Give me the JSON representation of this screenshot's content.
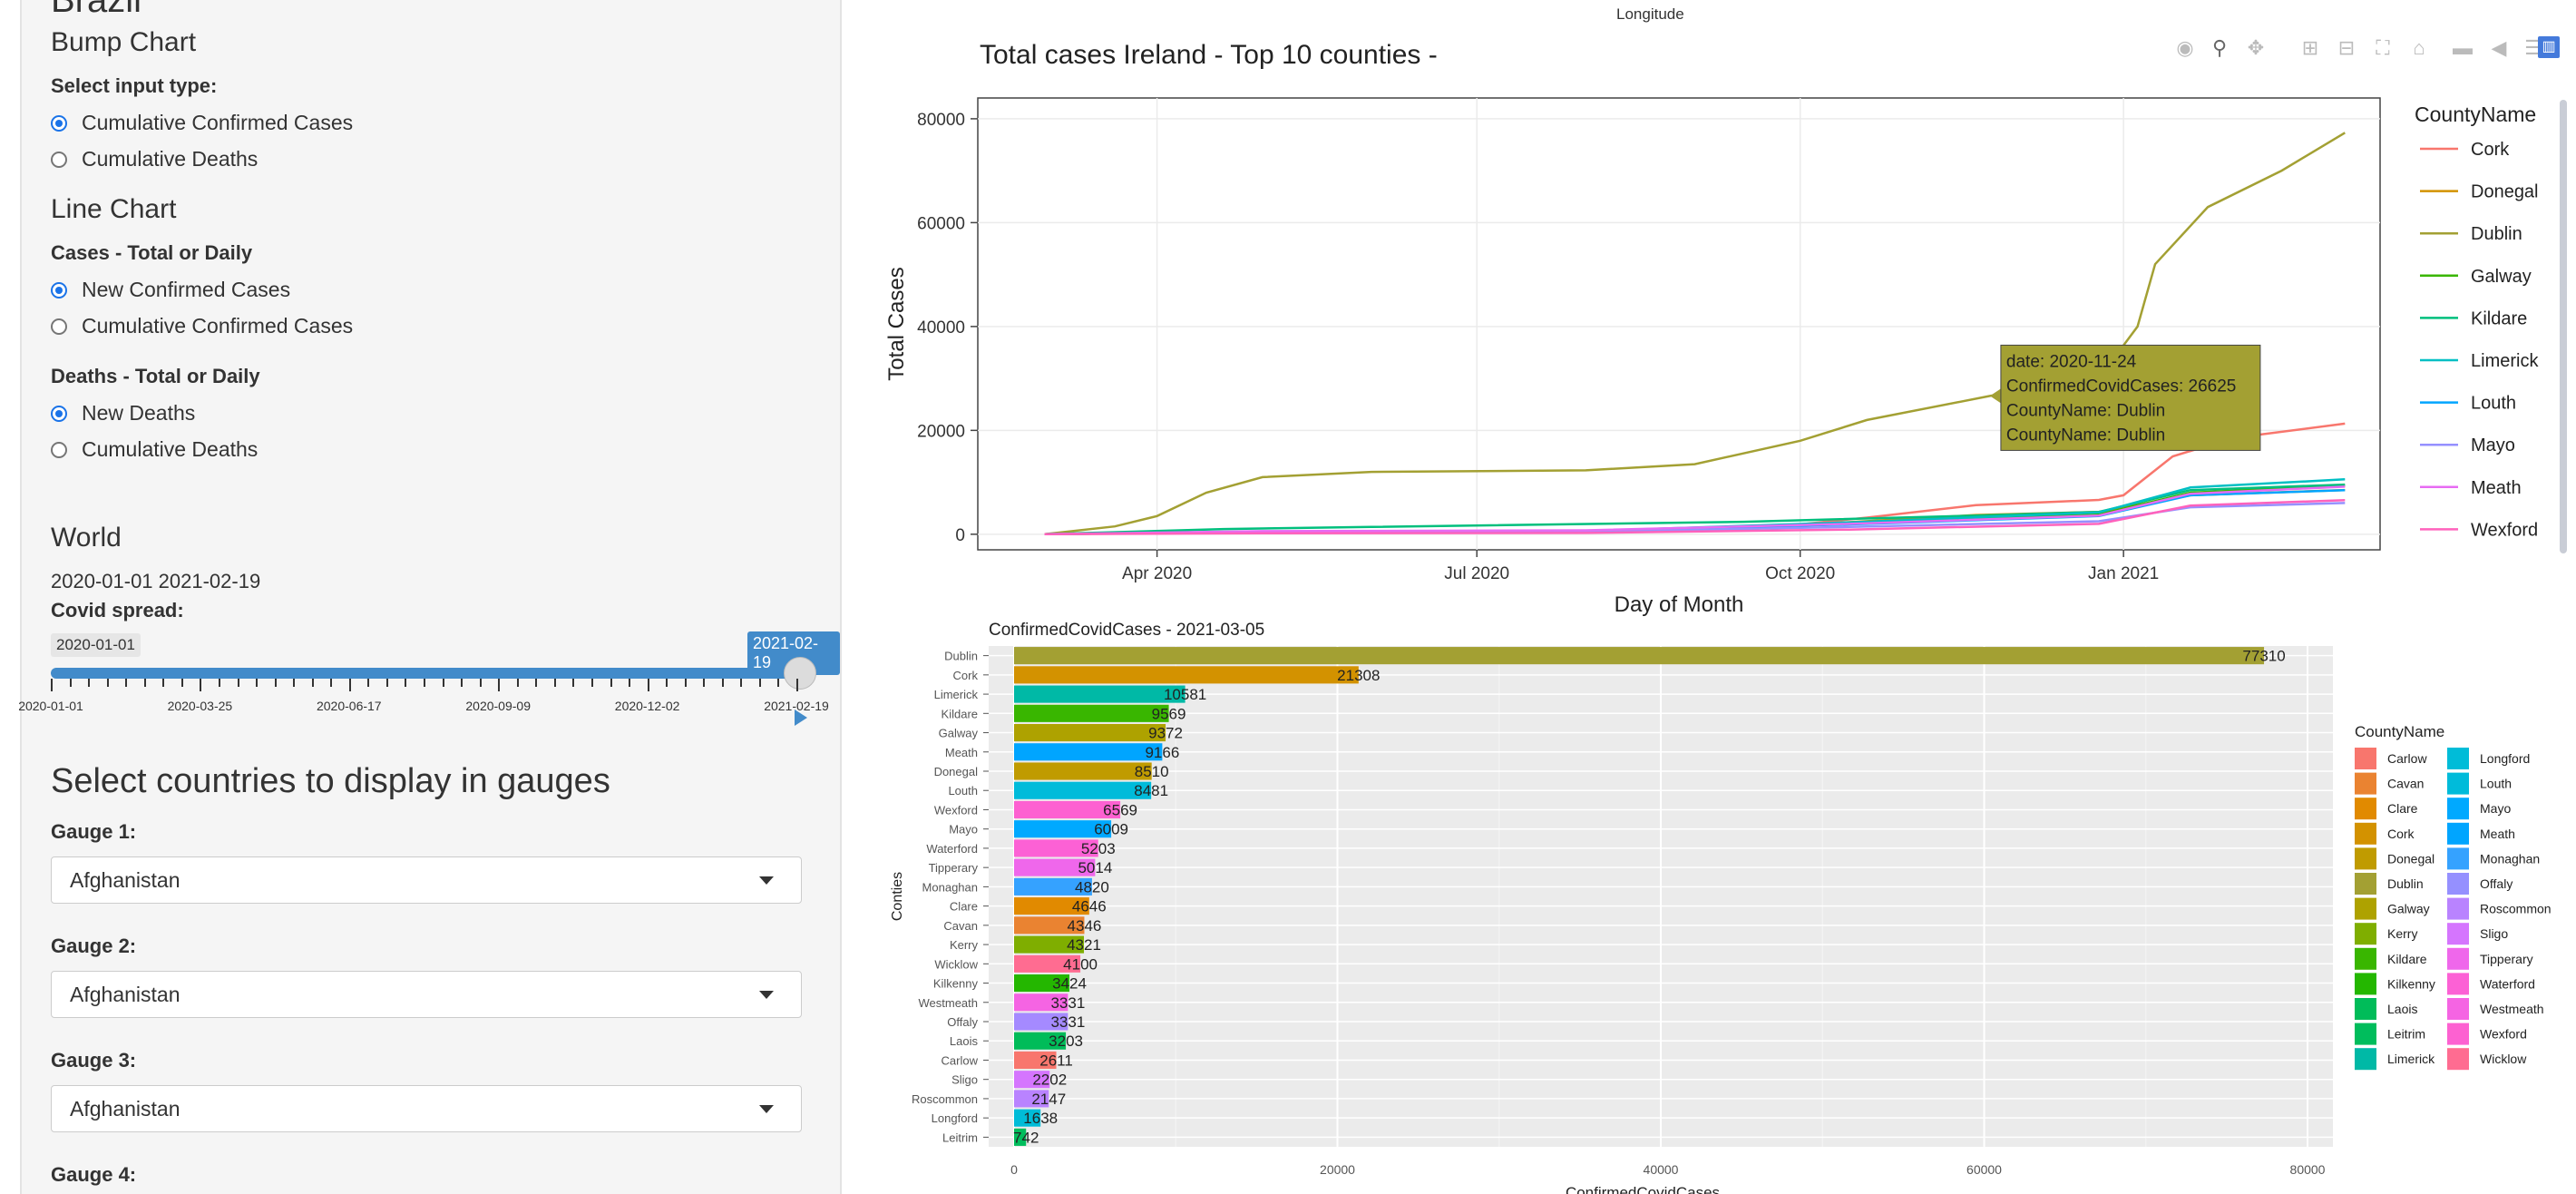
{
  "sidebar": {
    "country_heading": "Brazil",
    "bump_chart": {
      "heading": "Bump Chart",
      "input_label": "Select input type:",
      "options": [
        "Cumulative Confirmed Cases",
        "Cumulative Deaths"
      ],
      "selected": 0
    },
    "line_chart": {
      "heading": "Line Chart",
      "cases_label": "Cases - Total or Daily",
      "cases_options": [
        "New Confirmed Cases",
        "Cumulative Confirmed Cases"
      ],
      "deaths_label": "Deaths - Total or Daily",
      "deaths_options": [
        "New Deaths",
        "Cumulative Deaths"
      ]
    },
    "world": {
      "heading": "World",
      "date_range": "2020-01-01 2021-02-19",
      "spread_label": "Covid spread:",
      "slider_min_tag": "2020-01-01",
      "slider_value_tag": "2021-02-19",
      "slider_value_fraction": 1.0,
      "ticks": [
        "2020-01-01",
        "2020-03-25",
        "2020-06-17",
        "2020-09-09",
        "2020-12-02",
        "2021-02-19"
      ],
      "play_icon": "play-icon"
    },
    "gauges": {
      "heading": "Select countries to display in gauges",
      "items": [
        {
          "label": "Gauge 1:",
          "value": "Afghanistan"
        },
        {
          "label": "Gauge 2:",
          "value": "Afghanistan"
        },
        {
          "label": "Gauge 3:",
          "value": "Afghanistan"
        },
        {
          "label": "Gauge 4:",
          "value": ""
        }
      ]
    }
  },
  "top_fragment": {
    "axis_label": "Longitude"
  },
  "toolbar": {
    "icons": [
      "camera-icon",
      "zoom-icon",
      "pan-icon",
      "zoom-in-icon",
      "zoom-out-icon",
      "autoscale-icon",
      "reset-axes-icon",
      "spike-lines-icon",
      "hover-closest-icon",
      "hover-compare-icon",
      "plotly-logo-icon"
    ]
  },
  "line_plot": {
    "title": "Total cases Ireland - Top 10 counties -",
    "xlabel": "Day of Month",
    "ylabel": "Total Cases",
    "legend_title": "CountyName",
    "tooltip": {
      "lines": [
        "date: 2020-11-24",
        "ConfirmedCovidCases: 26625",
        "CountyName: Dublin",
        "CountyName: Dublin"
      ],
      "color": "#a3a033"
    }
  },
  "bar_plot": {
    "title": "ConfirmedCovidCases -  2021-03-05",
    "xlabel": "ConfirmedCovidCases",
    "ylabel": "Conties",
    "legend_title": "CountyName"
  },
  "chart_data": [
    {
      "type": "line",
      "title": "Total cases Ireland - Top 10 counties -",
      "xlabel": "Day of Month",
      "ylabel": "Total Cases",
      "x_ticks": [
        "Apr 2020",
        "Jul 2020",
        "Oct 2020",
        "Jan 2021"
      ],
      "y_ticks": [
        0,
        20000,
        40000,
        60000,
        80000
      ],
      "ylim": [
        -3000,
        84000
      ],
      "xlim": [
        "2020-02-10",
        "2021-03-15"
      ],
      "grid": true,
      "legend_placement": "right",
      "series": [
        {
          "name": "Cork",
          "color": "#f8766d",
          "points": [
            [
              "2020-02-29",
              0
            ],
            [
              "2020-05-01",
              300
            ],
            [
              "2020-08-01",
              450
            ],
            [
              "2020-09-15",
              800
            ],
            [
              "2020-10-20",
              3200
            ],
            [
              "2020-11-20",
              5600
            ],
            [
              "2020-12-25",
              6600
            ],
            [
              "2021-01-01",
              7500
            ],
            [
              "2021-01-15",
              15000
            ],
            [
              "2021-02-01",
              18500
            ],
            [
              "2021-03-05",
              21308
            ]
          ]
        },
        {
          "name": "Donegal",
          "color": "#d39200",
          "points": [
            [
              "2020-02-29",
              0
            ],
            [
              "2020-05-01",
              400
            ],
            [
              "2020-08-01",
              500
            ],
            [
              "2020-10-01",
              1800
            ],
            [
              "2020-11-20",
              3700
            ],
            [
              "2020-12-25",
              4300
            ],
            [
              "2021-01-20",
              7500
            ],
            [
              "2021-03-05",
              8510
            ]
          ]
        },
        {
          "name": "Dublin",
          "color": "#a3a033",
          "points": [
            [
              "2020-02-29",
              0
            ],
            [
              "2020-03-20",
              1500
            ],
            [
              "2020-04-01",
              3500
            ],
            [
              "2020-04-15",
              8000
            ],
            [
              "2020-05-01",
              11000
            ],
            [
              "2020-06-01",
              12000
            ],
            [
              "2020-08-01",
              12300
            ],
            [
              "2020-09-01",
              13500
            ],
            [
              "2020-10-01",
              18000
            ],
            [
              "2020-10-20",
              22000
            ],
            [
              "2020-11-24",
              26625
            ],
            [
              "2020-12-25",
              30000
            ],
            [
              "2021-01-05",
              40000
            ],
            [
              "2021-01-10",
              52000
            ],
            [
              "2021-01-25",
              63000
            ],
            [
              "2021-02-15",
              70000
            ],
            [
              "2021-03-05",
              77310
            ]
          ]
        },
        {
          "name": "Galway",
          "color": "#39b600",
          "points": [
            [
              "2020-02-29",
              0
            ],
            [
              "2020-05-01",
              450
            ],
            [
              "2020-08-01",
              550
            ],
            [
              "2020-10-15",
              2000
            ],
            [
              "2020-12-25",
              3800
            ],
            [
              "2021-01-20",
              8000
            ],
            [
              "2021-03-05",
              9372
            ]
          ]
        },
        {
          "name": "Kildare",
          "color": "#00bf7d",
          "points": [
            [
              "2020-02-29",
              0
            ],
            [
              "2020-04-20",
              1000
            ],
            [
              "2020-06-01",
              1400
            ],
            [
              "2020-09-15",
              2400
            ],
            [
              "2020-11-20",
              3600
            ],
            [
              "2020-12-25",
              4300
            ],
            [
              "2021-01-20",
              8500
            ],
            [
              "2021-03-05",
              9569
            ]
          ]
        },
        {
          "name": "Limerick",
          "color": "#00bfc4",
          "points": [
            [
              "2020-02-29",
              0
            ],
            [
              "2020-05-01",
              500
            ],
            [
              "2020-08-01",
              600
            ],
            [
              "2020-10-15",
              2300
            ],
            [
              "2020-12-25",
              4200
            ],
            [
              "2021-01-20",
              9000
            ],
            [
              "2021-03-05",
              10581
            ]
          ]
        },
        {
          "name": "Louth",
          "color": "#00a5ff",
          "points": [
            [
              "2020-02-29",
              0
            ],
            [
              "2020-05-01",
              400
            ],
            [
              "2020-08-01",
              500
            ],
            [
              "2020-10-15",
              1900
            ],
            [
              "2020-12-25",
              3500
            ],
            [
              "2021-01-20",
              7500
            ],
            [
              "2021-03-05",
              8481
            ]
          ]
        },
        {
          "name": "Mayo",
          "color": "#9590ff",
          "points": [
            [
              "2020-02-29",
              0
            ],
            [
              "2020-05-01",
              450
            ],
            [
              "2020-08-01",
              500
            ],
            [
              "2020-10-15",
              1400
            ],
            [
              "2020-12-25",
              2500
            ],
            [
              "2021-01-20",
              5200
            ],
            [
              "2021-03-05",
              6009
            ]
          ]
        },
        {
          "name": "Meath",
          "color": "#e76bf3",
          "points": [
            [
              "2020-02-29",
              0
            ],
            [
              "2020-05-01",
              600
            ],
            [
              "2020-08-01",
              750
            ],
            [
              "2020-10-15",
              2000
            ],
            [
              "2020-12-25",
              3600
            ],
            [
              "2021-01-20",
              7800
            ],
            [
              "2021-03-05",
              9166
            ]
          ]
        },
        {
          "name": "Wexford",
          "color": "#ff62bc",
          "points": [
            [
              "2020-02-29",
              0
            ],
            [
              "2020-05-01",
              200
            ],
            [
              "2020-08-01",
              250
            ],
            [
              "2020-10-15",
              900
            ],
            [
              "2020-12-25",
              2000
            ],
            [
              "2021-01-20",
              5500
            ],
            [
              "2021-03-05",
              6569
            ]
          ]
        }
      ]
    },
    {
      "type": "bar",
      "orientation": "horizontal",
      "title": "ConfirmedCovidCases -  2021-03-05",
      "xlabel": "ConfirmedCovidCases",
      "ylabel": "Conties",
      "xlim": [
        0,
        80000
      ],
      "x_ticks": [
        0,
        20000,
        40000,
        60000,
        80000
      ],
      "grid": true,
      "legend_placement": "right",
      "categories": [
        "Dublin",
        "Cork",
        "Limerick",
        "Kildare",
        "Galway",
        "Meath",
        "Donegal",
        "Louth",
        "Wexford",
        "Mayo",
        "Waterford",
        "Tipperary",
        "Monaghan",
        "Clare",
        "Cavan",
        "Kerry",
        "Wicklow",
        "Kilkenny",
        "Westmeath",
        "Offaly",
        "Laois",
        "Carlow",
        "Sligo",
        "Roscommon",
        "Longford",
        "Leitrim"
      ],
      "values": [
        77310,
        21308,
        10581,
        9569,
        9372,
        9166,
        8510,
        8481,
        6569,
        6009,
        5203,
        5014,
        4820,
        4646,
        4346,
        4321,
        4100,
        3424,
        3331,
        3331,
        3203,
        2611,
        2202,
        2147,
        1638,
        742
      ],
      "colors": [
        "#a3a033",
        "#d39200",
        "#00b9a6",
        "#39b600",
        "#aea200",
        "#00a5ff",
        "#c09b00",
        "#00bbda",
        "#fd61d1",
        "#00a9ff",
        "#fc61d5",
        "#ef67eb",
        "#35a2ff",
        "#e18a00",
        "#ea8331",
        "#7fae00",
        "#ff6c91",
        "#24b700",
        "#f564e3",
        "#a58aff",
        "#00bc59",
        "#f8766d",
        "#d575fe",
        "#b983ff",
        "#00bcd8",
        "#00bd5c"
      ],
      "legend": [
        {
          "name": "Carlow",
          "color": "#f8766d"
        },
        {
          "name": "Cavan",
          "color": "#ea8331"
        },
        {
          "name": "Clare",
          "color": "#e18a00"
        },
        {
          "name": "Cork",
          "color": "#d39200"
        },
        {
          "name": "Donegal",
          "color": "#c09b00"
        },
        {
          "name": "Dublin",
          "color": "#a3a033"
        },
        {
          "name": "Galway",
          "color": "#aea200"
        },
        {
          "name": "Kerry",
          "color": "#7fae00"
        },
        {
          "name": "Kildare",
          "color": "#39b600"
        },
        {
          "name": "Kilkenny",
          "color": "#24b700"
        },
        {
          "name": "Laois",
          "color": "#00bc59"
        },
        {
          "name": "Leitrim",
          "color": "#00bd5c"
        },
        {
          "name": "Limerick",
          "color": "#00b9a6"
        },
        {
          "name": "Longford",
          "color": "#00bcd8"
        },
        {
          "name": "Louth",
          "color": "#00bbda"
        },
        {
          "name": "Mayo",
          "color": "#00a9ff"
        },
        {
          "name": "Meath",
          "color": "#00a5ff"
        },
        {
          "name": "Monaghan",
          "color": "#35a2ff"
        },
        {
          "name": "Offaly",
          "color": "#9590ff"
        },
        {
          "name": "Roscommon",
          "color": "#b983ff"
        },
        {
          "name": "Sligo",
          "color": "#d575fe"
        },
        {
          "name": "Tipperary",
          "color": "#ef67eb"
        },
        {
          "name": "Waterford",
          "color": "#fc61d5"
        },
        {
          "name": "Westmeath",
          "color": "#f564e3"
        },
        {
          "name": "Wexford",
          "color": "#fd61d1"
        },
        {
          "name": "Wicklow",
          "color": "#ff6c91"
        }
      ]
    }
  ]
}
